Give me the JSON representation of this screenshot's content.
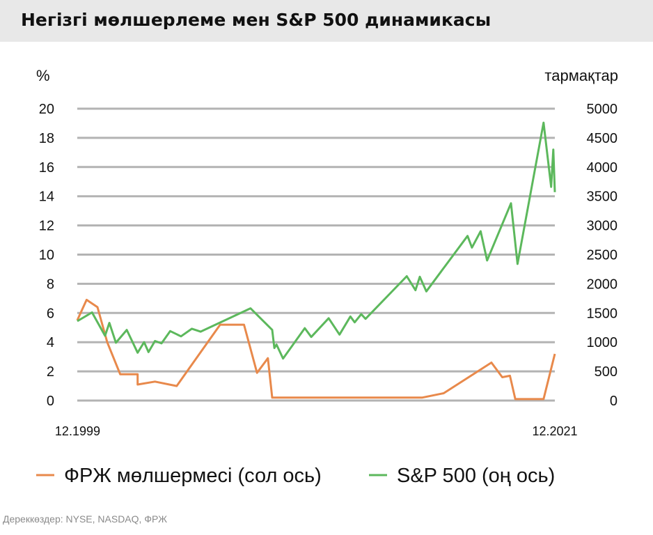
{
  "title": "Негізгі мөлшерлеме мен S&P 500 динамикасы",
  "source": "Дереккөздер: NYSE, NASDAQ, ФРЖ",
  "colors": {
    "fed_rate": "#e8894b",
    "sp500": "#5cb85c",
    "grid": "#b3b3b3",
    "text": "#111111",
    "title_bg": "#e8e8e8"
  },
  "chart_data": {
    "type": "line",
    "y_left": {
      "unit_label": "%",
      "range": [
        0,
        20
      ],
      "ticks": [
        "0",
        "2",
        "4",
        "6",
        "8",
        "10",
        "12",
        "14",
        "16",
        "18",
        "20"
      ]
    },
    "y_right": {
      "unit_label": "тармақтар",
      "range": [
        0,
        5000
      ],
      "ticks": [
        "0",
        "500",
        "1000",
        "1500",
        "2000",
        "2500",
        "3000",
        "3500",
        "4000",
        "4500",
        "5000"
      ]
    },
    "x_range": [
      1999.92,
      2021.92
    ],
    "x_tick_labels": [
      {
        "label": "12.1999",
        "x": 1999.92
      },
      {
        "label": "12.2021",
        "x": 2021.92
      }
    ],
    "grid": true,
    "legend_position": "bottom",
    "series": [
      {
        "name": "ФРЖ мөлшермесі (сол ось)",
        "axis": "left",
        "color": "#e8894b",
        "points": [
          [
            1999.92,
            5.5
          ],
          [
            2000.35,
            6.9
          ],
          [
            2000.85,
            6.4
          ],
          [
            2001.3,
            4.0
          ],
          [
            2001.9,
            1.8
          ],
          [
            2002.7,
            1.8
          ],
          [
            2002.7,
            1.1
          ],
          [
            2003.5,
            1.3
          ],
          [
            2004.5,
            1.0
          ],
          [
            2006.5,
            5.2
          ],
          [
            2007.6,
            5.2
          ],
          [
            2008.2,
            1.9
          ],
          [
            2008.7,
            2.9
          ],
          [
            2008.9,
            0.2
          ],
          [
            2015.8,
            0.2
          ],
          [
            2016.8,
            0.5
          ],
          [
            2019.0,
            2.6
          ],
          [
            2019.5,
            1.6
          ],
          [
            2019.85,
            1.7
          ],
          [
            2020.1,
            0.1
          ],
          [
            2021.4,
            0.1
          ],
          [
            2021.92,
            3.2
          ]
        ]
      },
      {
        "name": "S&P 500 (оң ось)",
        "axis": "right",
        "color": "#5cb85c",
        "points": [
          [
            1999.92,
            1360
          ],
          [
            2000.6,
            1510
          ],
          [
            2001.2,
            1110
          ],
          [
            2001.4,
            1330
          ],
          [
            2001.7,
            990
          ],
          [
            2002.2,
            1210
          ],
          [
            2002.7,
            820
          ],
          [
            2003.0,
            1000
          ],
          [
            2003.2,
            830
          ],
          [
            2003.5,
            1020
          ],
          [
            2003.8,
            980
          ],
          [
            2004.2,
            1190
          ],
          [
            2004.7,
            1100
          ],
          [
            2005.2,
            1230
          ],
          [
            2005.6,
            1180
          ],
          [
            2007.9,
            1580
          ],
          [
            2008.9,
            1210
          ],
          [
            2009.0,
            900
          ],
          [
            2009.1,
            960
          ],
          [
            2009.4,
            720
          ],
          [
            2010.4,
            1240
          ],
          [
            2010.7,
            1090
          ],
          [
            2011.5,
            1410
          ],
          [
            2012.0,
            1130
          ],
          [
            2012.5,
            1440
          ],
          [
            2012.7,
            1340
          ],
          [
            2013.0,
            1480
          ],
          [
            2013.2,
            1400
          ],
          [
            2015.1,
            2130
          ],
          [
            2015.5,
            1890
          ],
          [
            2015.7,
            2120
          ],
          [
            2016.0,
            1870
          ],
          [
            2017.9,
            2820
          ],
          [
            2018.1,
            2620
          ],
          [
            2018.5,
            2900
          ],
          [
            2018.8,
            2400
          ],
          [
            2019.9,
            3380
          ],
          [
            2020.2,
            2340
          ],
          [
            2021.4,
            4760
          ],
          [
            2021.75,
            3660
          ],
          [
            2021.85,
            4300
          ],
          [
            2021.92,
            3570
          ]
        ]
      }
    ]
  }
}
